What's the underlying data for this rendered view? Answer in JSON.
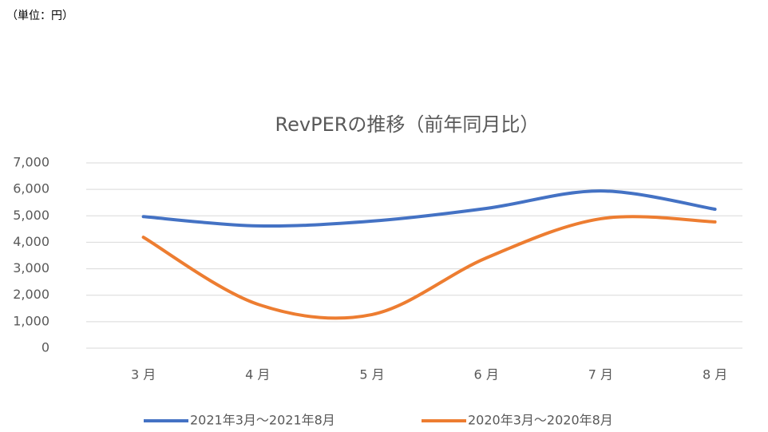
{
  "chart_data": {
    "type": "line",
    "unit_note": "（単位：円）",
    "title": "RevPERの推移（前年同月比）",
    "categories": [
      "3 月",
      "4 月",
      "5 月",
      "6 月",
      "7 月",
      "8 月"
    ],
    "series": [
      {
        "name": "2021年3月～2021年8月",
        "color": "#4472c4",
        "values": [
          4970,
          4620,
          4800,
          5280,
          5940,
          5250
        ]
      },
      {
        "name": "2020年3月～2020年8月",
        "color": "#ed7d31",
        "values": [
          4190,
          1660,
          1270,
          3410,
          4890,
          4770
        ]
      }
    ],
    "ylim": [
      0,
      7000
    ],
    "yticks": [
      0,
      {
        "value": 1000,
        "label": "1,000"
      },
      {
        "value": 2000,
        "label": "2,000"
      },
      {
        "value": 3000,
        "label": "3,000"
      },
      {
        "value": 4000,
        "label": "4,000"
      },
      {
        "value": 5000,
        "label": "5,000"
      },
      {
        "value": 6000,
        "label": "6,000"
      },
      {
        "value": 7000,
        "label": "7,000"
      }
    ],
    "grid": true,
    "legend": "bottom"
  }
}
